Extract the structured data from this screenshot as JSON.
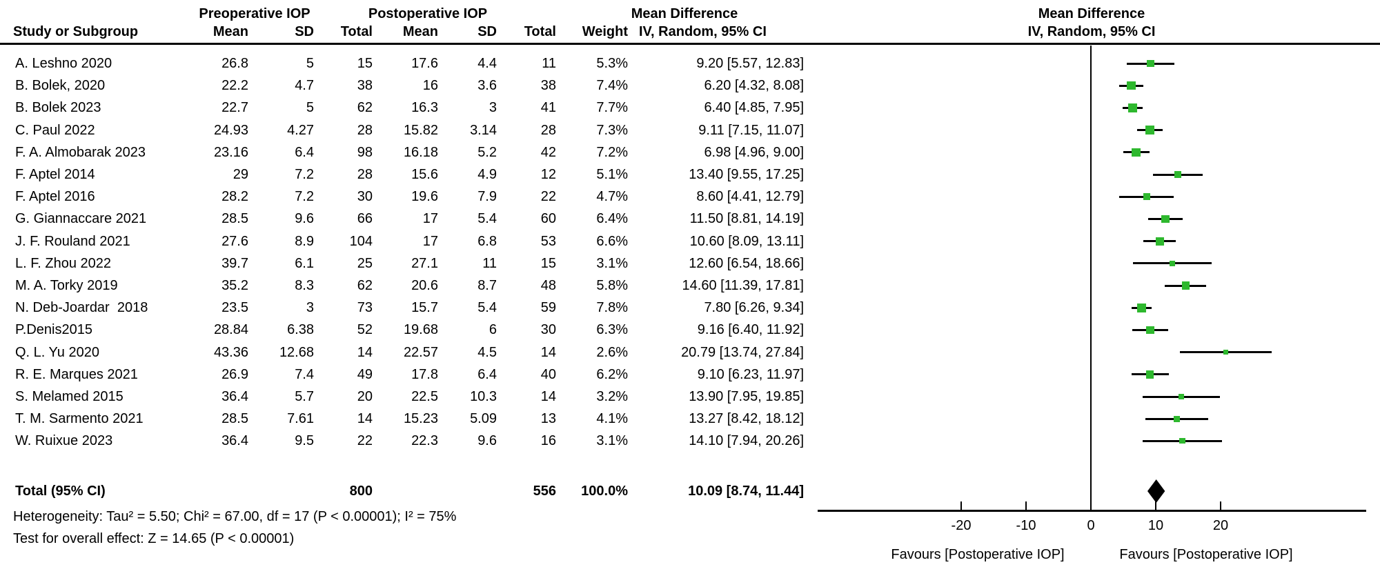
{
  "figure": {
    "col_headers": {
      "group_pre": "Preoperative IOP",
      "group_post": "Postoperative IOP",
      "md_text_col": "Mean Difference",
      "md_plot_col": "Mean Difference",
      "study": "Study or Subgroup",
      "pre_mean": "Mean",
      "pre_sd": "SD",
      "pre_total": "Total",
      "post_mean": "Mean",
      "post_sd": "SD",
      "post_total": "Total",
      "weight": "Weight",
      "ci_method_text_col": "IV, Random, 95% CI",
      "ci_method_plot_col": "IV, Random, 95% CI"
    }
  },
  "chart_data": {
    "type": "forest",
    "effect_measure": "Mean Difference",
    "method": "IV, Random, 95% CI",
    "marker_color": "#2eb82e",
    "line_color": "#000000",
    "studies": [
      {
        "name": "A. Leshno 2020",
        "pre_mean": "26.8",
        "pre_sd": "5",
        "pre_total": "15",
        "post_mean": "17.6",
        "post_sd": "4.4",
        "post_total": "11",
        "weight": "5.3%",
        "ci_text": "9.20 [5.57, 12.83]",
        "md": 9.2,
        "ci_low": 5.57,
        "ci_high": 12.83
      },
      {
        "name": "B. Bolek, 2020",
        "pre_mean": "22.2",
        "pre_sd": "4.7",
        "pre_total": "38",
        "post_mean": "16",
        "post_sd": "3.6",
        "post_total": "38",
        "weight": "7.4%",
        "ci_text": "6.20 [4.32, 8.08]",
        "md": 6.2,
        "ci_low": 4.32,
        "ci_high": 8.08
      },
      {
        "name": "B. Bolek 2023",
        "pre_mean": "22.7",
        "pre_sd": "5",
        "pre_total": "62",
        "post_mean": "16.3",
        "post_sd": "3",
        "post_total": "41",
        "weight": "7.7%",
        "ci_text": "6.40 [4.85, 7.95]",
        "md": 6.4,
        "ci_low": 4.85,
        "ci_high": 7.95
      },
      {
        "name": "C. Paul 2022",
        "pre_mean": "24.93",
        "pre_sd": "4.27",
        "pre_total": "28",
        "post_mean": "15.82",
        "post_sd": "3.14",
        "post_total": "28",
        "weight": "7.3%",
        "ci_text": "9.11 [7.15, 11.07]",
        "md": 9.11,
        "ci_low": 7.15,
        "ci_high": 11.07
      },
      {
        "name": "F. A. Almobarak 2023",
        "pre_mean": "23.16",
        "pre_sd": "6.4",
        "pre_total": "98",
        "post_mean": "16.18",
        "post_sd": "5.2",
        "post_total": "42",
        "weight": "7.2%",
        "ci_text": "6.98 [4.96, 9.00]",
        "md": 6.98,
        "ci_low": 4.96,
        "ci_high": 9.0
      },
      {
        "name": "F. Aptel 2014",
        "pre_mean": "29",
        "pre_sd": "7.2",
        "pre_total": "28",
        "post_mean": "15.6",
        "post_sd": "4.9",
        "post_total": "12",
        "weight": "5.1%",
        "ci_text": "13.40 [9.55, 17.25]",
        "md": 13.4,
        "ci_low": 9.55,
        "ci_high": 17.25
      },
      {
        "name": "F. Aptel 2016",
        "pre_mean": "28.2",
        "pre_sd": "7.2",
        "pre_total": "30",
        "post_mean": "19.6",
        "post_sd": "7.9",
        "post_total": "22",
        "weight": "4.7%",
        "ci_text": "8.60 [4.41, 12.79]",
        "md": 8.6,
        "ci_low": 4.41,
        "ci_high": 12.79
      },
      {
        "name": "G. Giannaccare 2021",
        "pre_mean": "28.5",
        "pre_sd": "9.6",
        "pre_total": "66",
        "post_mean": "17",
        "post_sd": "5.4",
        "post_total": "60",
        "weight": "6.4%",
        "ci_text": "11.50 [8.81, 14.19]",
        "md": 11.5,
        "ci_low": 8.81,
        "ci_high": 14.19
      },
      {
        "name": "J. F. Rouland 2021",
        "pre_mean": "27.6",
        "pre_sd": "8.9",
        "pre_total": "104",
        "post_mean": "17",
        "post_sd": "6.8",
        "post_total": "53",
        "weight": "6.6%",
        "ci_text": "10.60 [8.09, 13.11]",
        "md": 10.6,
        "ci_low": 8.09,
        "ci_high": 13.11
      },
      {
        "name": "L. F. Zhou 2022",
        "pre_mean": "39.7",
        "pre_sd": "6.1",
        "pre_total": "25",
        "post_mean": "27.1",
        "post_sd": "11",
        "post_total": "15",
        "weight": "3.1%",
        "ci_text": "12.60 [6.54, 18.66]",
        "md": 12.6,
        "ci_low": 6.54,
        "ci_high": 18.66
      },
      {
        "name": "M. A. Torky 2019",
        "pre_mean": "35.2",
        "pre_sd": "8.3",
        "pre_total": "62",
        "post_mean": "20.6",
        "post_sd": "8.7",
        "post_total": "48",
        "weight": "5.8%",
        "ci_text": "14.60 [11.39, 17.81]",
        "md": 14.6,
        "ci_low": 11.39,
        "ci_high": 17.81
      },
      {
        "name": "N. Deb-Joardar  2018",
        "pre_mean": "23.5",
        "pre_sd": "3",
        "pre_total": "73",
        "post_mean": "15.7",
        "post_sd": "5.4",
        "post_total": "59",
        "weight": "7.8%",
        "ci_text": "7.80 [6.26, 9.34]",
        "md": 7.8,
        "ci_low": 6.26,
        "ci_high": 9.34
      },
      {
        "name": "P.Denis2015",
        "pre_mean": "28.84",
        "pre_sd": "6.38",
        "pre_total": "52",
        "post_mean": "19.68",
        "post_sd": "6",
        "post_total": "30",
        "weight": "6.3%",
        "ci_text": "9.16 [6.40, 11.92]",
        "md": 9.16,
        "ci_low": 6.4,
        "ci_high": 11.92
      },
      {
        "name": "Q. L. Yu 2020",
        "pre_mean": "43.36",
        "pre_sd": "12.68",
        "pre_total": "14",
        "post_mean": "22.57",
        "post_sd": "4.5",
        "post_total": "14",
        "weight": "2.6%",
        "ci_text": "20.79 [13.74, 27.84]",
        "md": 20.79,
        "ci_low": 13.74,
        "ci_high": 27.84
      },
      {
        "name": "R. E. Marques 2021",
        "pre_mean": "26.9",
        "pre_sd": "7.4",
        "pre_total": "49",
        "post_mean": "17.8",
        "post_sd": "6.4",
        "post_total": "40",
        "weight": "6.2%",
        "ci_text": "9.10 [6.23, 11.97]",
        "md": 9.1,
        "ci_low": 6.23,
        "ci_high": 11.97
      },
      {
        "name": "S. Melamed 2015",
        "pre_mean": "36.4",
        "pre_sd": "5.7",
        "pre_total": "20",
        "post_mean": "22.5",
        "post_sd": "10.3",
        "post_total": "14",
        "weight": "3.2%",
        "ci_text": "13.90 [7.95, 19.85]",
        "md": 13.9,
        "ci_low": 7.95,
        "ci_high": 19.85
      },
      {
        "name": "T. M. Sarmento 2021",
        "pre_mean": "28.5",
        "pre_sd": "7.61",
        "pre_total": "14",
        "post_mean": "15.23",
        "post_sd": "5.09",
        "post_total": "13",
        "weight": "4.1%",
        "ci_text": "13.27 [8.42, 18.12]",
        "md": 13.27,
        "ci_low": 8.42,
        "ci_high": 18.12
      },
      {
        "name": "W. Ruixue 2023",
        "pre_mean": "36.4",
        "pre_sd": "9.5",
        "pre_total": "22",
        "post_mean": "22.3",
        "post_sd": "9.6",
        "post_total": "16",
        "weight": "3.1%",
        "ci_text": "14.10 [7.94, 20.26]",
        "md": 14.1,
        "ci_low": 7.94,
        "ci_high": 20.26
      }
    ],
    "total": {
      "label": "Total (95% CI)",
      "pre_total": "800",
      "post_total": "556",
      "weight": "100.0%",
      "ci_text": "10.09 [8.74, 11.44]",
      "md": 10.09,
      "ci_low": 8.74,
      "ci_high": 11.44
    },
    "heterogeneity": "Heterogeneity: Tau² = 5.50; Chi² = 67.00, df = 17 (P < 0.00001); I² = 75%",
    "overall_effect": "Test for overall effect: Z = 14.65 (P < 0.00001)",
    "axis": {
      "ticks": [
        -20,
        -10,
        0,
        10,
        20
      ],
      "grid": false
    },
    "favours_left": "Favours [Postoperative IOP]",
    "favours_right": "Favours [Postoperative IOP]"
  }
}
